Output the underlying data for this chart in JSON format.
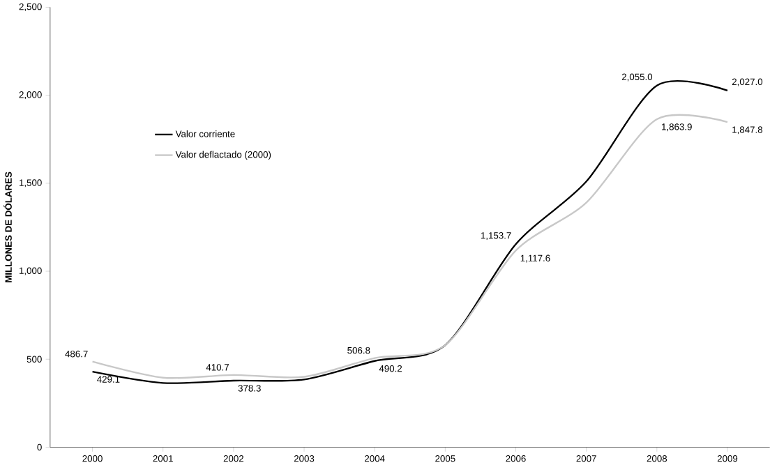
{
  "chart_data": {
    "type": "line",
    "ylabel": "MILLONES DE DÓLARES",
    "categories": [
      "2000",
      "2001",
      "2002",
      "2003",
      "2004",
      "2005",
      "2006",
      "2007",
      "2008",
      "2009"
    ],
    "ylim": [
      0,
      2500
    ],
    "yticks": [
      0,
      500,
      {
        "value": 1000,
        "label": "1,000"
      },
      {
        "value": 1500,
        "label": "1,500"
      },
      {
        "value": 2000,
        "label": "2,000"
      },
      {
        "value": 2500,
        "label": "2,500"
      }
    ],
    "grid": false,
    "legend": "top left",
    "marker": "none",
    "line_style": "solid",
    "series": [
      {
        "name": "Valor corriente",
        "color": "#000000",
        "values": [
          429.1,
          365,
          378.3,
          385,
          490.2,
          580,
          1153.7,
          1510,
          2055.0,
          2027.0
        ],
        "value_labels": [
          "429.1",
          null,
          "378.3",
          null,
          "490.2",
          null,
          "1,153.7",
          null,
          "2,055.0",
          "2,027.0"
        ]
      },
      {
        "name": "Valor deflactado (2000)",
        "color": "#c8c8c8",
        "values": [
          486.7,
          395,
          410.7,
          400,
          506.8,
          580,
          1117.6,
          1390,
          1863.9,
          1847.8
        ],
        "value_labels": [
          "486.7",
          null,
          "410.7",
          null,
          "506.8",
          null,
          "1,117.6",
          null,
          "1,863.9",
          "1,847.8"
        ]
      }
    ]
  }
}
